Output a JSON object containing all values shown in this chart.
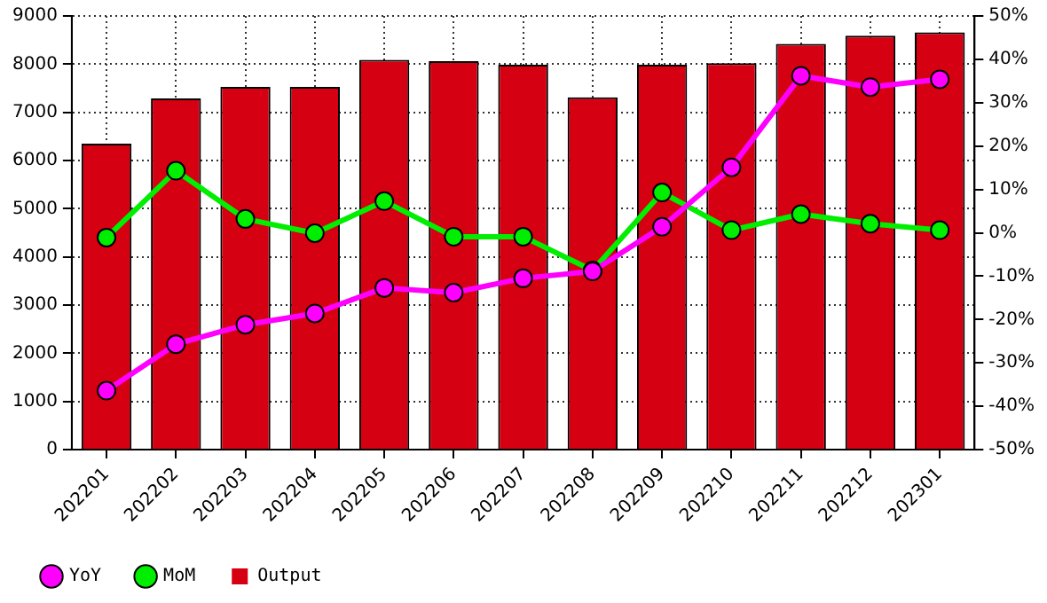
{
  "chart_data": {
    "type": "bar",
    "categories": [
      "202201",
      "202202",
      "202203",
      "202204",
      "202205",
      "202206",
      "202207",
      "202208",
      "202209",
      "202210",
      "202211",
      "202212",
      "202301"
    ],
    "series": [
      {
        "name": "YoY",
        "type": "line",
        "axis": "y2",
        "color": "#ff00ff",
        "values": [
          -36.4,
          -25.7,
          -21.2,
          -18.6,
          -12.7,
          -13.8,
          -10.5,
          -8.9,
          1.4,
          15.1,
          36.2,
          33.6,
          35.4
        ]
      },
      {
        "name": "MoM",
        "type": "line",
        "axis": "y2",
        "color": "#00ee00",
        "values": [
          -1.1,
          14.3,
          3.2,
          -0.1,
          7.3,
          -0.9,
          -0.9,
          -8.7,
          9.3,
          0.6,
          4.3,
          2.1,
          0.6
        ]
      },
      {
        "name": "Output",
        "color": "#d50012",
        "values": [
          6350,
          7290,
          7530,
          7530,
          8090,
          8060,
          7990,
          7310,
          7990,
          8020,
          8420,
          8590,
          8660
        ]
      }
    ],
    "ylim": [
      0,
      9000
    ],
    "yticks": [
      0,
      1000,
      2000,
      3000,
      4000,
      5000,
      6000,
      7000,
      8000,
      9000
    ],
    "y2lim": [
      -50,
      50
    ],
    "y2ticks": [
      {
        "value": -50,
        "label": "-50%"
      },
      {
        "value": -40,
        "label": "-40%"
      },
      {
        "value": -30,
        "label": "-30%"
      },
      {
        "value": -20,
        "label": "-20%"
      },
      {
        "value": -10,
        "label": "-10%"
      },
      {
        "value": 0,
        "label": "0%"
      },
      {
        "value": 10,
        "label": "10%"
      },
      {
        "value": 20,
        "label": "20%"
      },
      {
        "value": 30,
        "label": "30%"
      },
      {
        "value": 40,
        "label": "40%"
      },
      {
        "value": 50,
        "label": "50%"
      }
    ],
    "grid": true,
    "legend": "bottom left",
    "marker": "circle",
    "line_style": "solid"
  }
}
